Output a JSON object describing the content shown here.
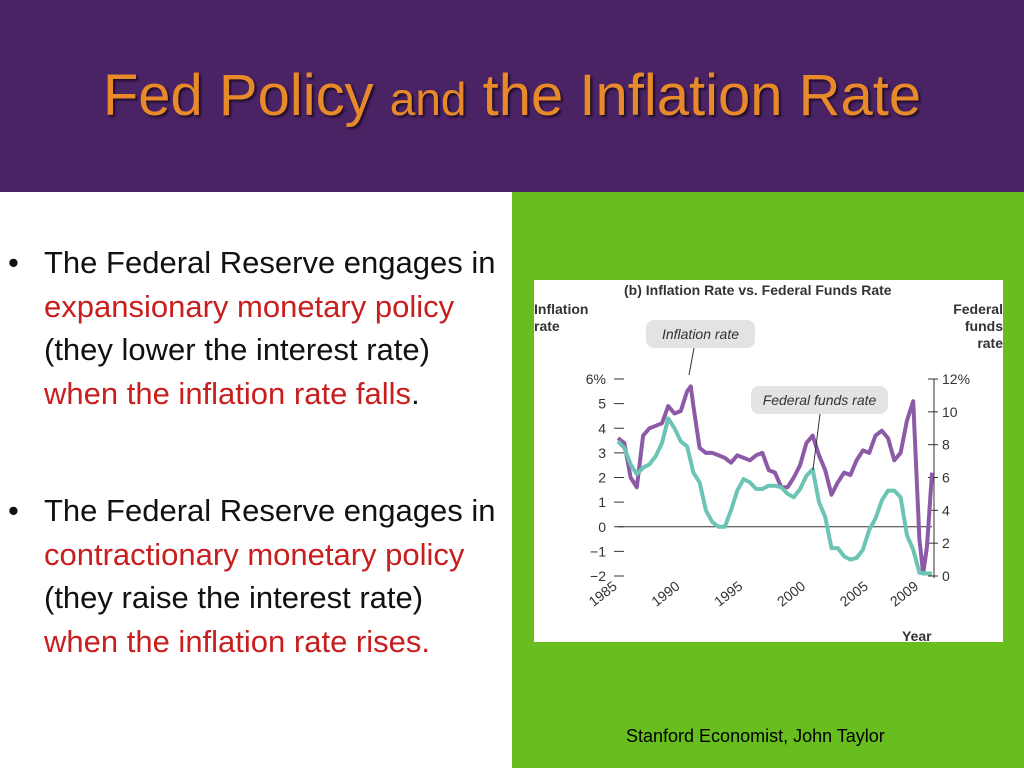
{
  "slide": {
    "title_part1": "Fed  Policy ",
    "title_part2": "and",
    "title_part3": " the Inflation Rate",
    "bullet_char": "•",
    "bullet1": {
      "seg1": "The Federal Reserve engages in ",
      "seg2": "expansionary monetary policy",
      "seg3": " (they lower the interest rate) ",
      "seg4": "when the inflation rate falls",
      "seg5": "."
    },
    "bullet2": {
      "seg1": "The Federal Reserve engages in ",
      "seg2": "contractionary monetary policy",
      "seg3": " (they raise the interest rate) ",
      "seg4": "when the inflation rate rises."
    },
    "caption": "Stanford Economist, John Taylor",
    "colors": {
      "header_bg": "#4a2365",
      "title": "#e88a2a",
      "accent_red": "#c81e1e",
      "panel_green": "#67be1e"
    }
  },
  "chart_data": {
    "type": "line",
    "title": "(b) Inflation Rate vs. Federal Funds Rate",
    "ylabel_left": "Inflation rate",
    "ylabel_right": "Federal funds rate",
    "xlabel": "Year",
    "x_ticks": [
      "1985",
      "1990",
      "1995",
      "2000",
      "2005",
      "2009"
    ],
    "y_left_ticks": [
      "6%",
      "5",
      "4",
      "3",
      "2",
      "1",
      "0",
      "−1",
      "−2"
    ],
    "y_right_ticks": [
      "12%",
      "10",
      "8",
      "6",
      "4",
      "2",
      "0"
    ],
    "ylim_left": [
      -2,
      6
    ],
    "ylim_right": [
      0,
      12
    ],
    "grid": false,
    "series": [
      {
        "name": "Inflation rate",
        "axis": "left",
        "color": "#8c5aa6",
        "x": [
          1985.0,
          1985.5,
          1986.0,
          1986.5,
          1987.0,
          1987.5,
          1988.0,
          1988.5,
          1989.0,
          1989.5,
          1990.0,
          1990.5,
          1990.8,
          1991.0,
          1991.5,
          1992.0,
          1992.5,
          1993.0,
          1993.5,
          1994.0,
          1994.5,
          1995.0,
          1995.5,
          1996.0,
          1996.5,
          1997.0,
          1997.5,
          1998.0,
          1998.5,
          1999.0,
          1999.5,
          2000.0,
          2000.5,
          2001.0,
          2001.5,
          2002.0,
          2002.5,
          2003.0,
          2003.5,
          2004.0,
          2004.5,
          2005.0,
          2005.5,
          2006.0,
          2006.5,
          2007.0,
          2007.5,
          2008.0,
          2008.5,
          2009.0,
          2009.3,
          2009.6,
          2010.0
        ],
        "values": [
          3.6,
          3.4,
          2.0,
          1.6,
          3.7,
          4.0,
          4.1,
          4.2,
          4.9,
          4.6,
          4.7,
          5.5,
          5.7,
          4.9,
          3.2,
          3.0,
          3.0,
          2.9,
          2.8,
          2.6,
          2.9,
          2.8,
          2.7,
          2.9,
          3.0,
          2.3,
          2.2,
          1.6,
          1.6,
          2.0,
          2.5,
          3.4,
          3.7,
          2.9,
          2.3,
          1.3,
          1.8,
          2.2,
          2.1,
          2.7,
          3.1,
          3.0,
          3.7,
          3.9,
          3.6,
          2.7,
          3.0,
          4.3,
          5.1,
          -0.5,
          -1.9,
          -0.8,
          2.2
        ]
      },
      {
        "name": "Federal funds rate",
        "axis": "right",
        "color": "#6cc4b4",
        "x": [
          1985.0,
          1985.5,
          1986.0,
          1986.5,
          1987.0,
          1987.5,
          1988.0,
          1988.5,
          1989.0,
          1989.5,
          1990.0,
          1990.5,
          1991.0,
          1991.5,
          1992.0,
          1992.5,
          1993.0,
          1993.5,
          1994.0,
          1994.5,
          1995.0,
          1995.5,
          1996.0,
          1996.5,
          1997.0,
          1997.5,
          1998.0,
          1998.5,
          1999.0,
          1999.5,
          2000.0,
          2000.5,
          2001.0,
          2001.5,
          2002.0,
          2002.5,
          2003.0,
          2003.5,
          2004.0,
          2004.5,
          2005.0,
          2005.5,
          2006.0,
          2006.5,
          2007.0,
          2007.5,
          2008.0,
          2008.5,
          2009.0,
          2009.5,
          2010.0
        ],
        "values": [
          8.2,
          7.8,
          6.8,
          6.2,
          6.6,
          6.8,
          7.3,
          8.1,
          9.6,
          9.0,
          8.2,
          7.9,
          6.3,
          5.7,
          4.0,
          3.3,
          3.0,
          3.0,
          4.0,
          5.2,
          5.9,
          5.7,
          5.3,
          5.3,
          5.5,
          5.5,
          5.4,
          5.0,
          4.8,
          5.3,
          6.1,
          6.5,
          4.5,
          3.6,
          1.7,
          1.7,
          1.2,
          1.0,
          1.1,
          1.6,
          2.8,
          3.5,
          4.6,
          5.2,
          5.2,
          4.8,
          2.5,
          1.6,
          0.2,
          0.15,
          0.15
        ]
      }
    ],
    "annotations": [
      "Inflation rate",
      "Federal funds rate"
    ]
  }
}
